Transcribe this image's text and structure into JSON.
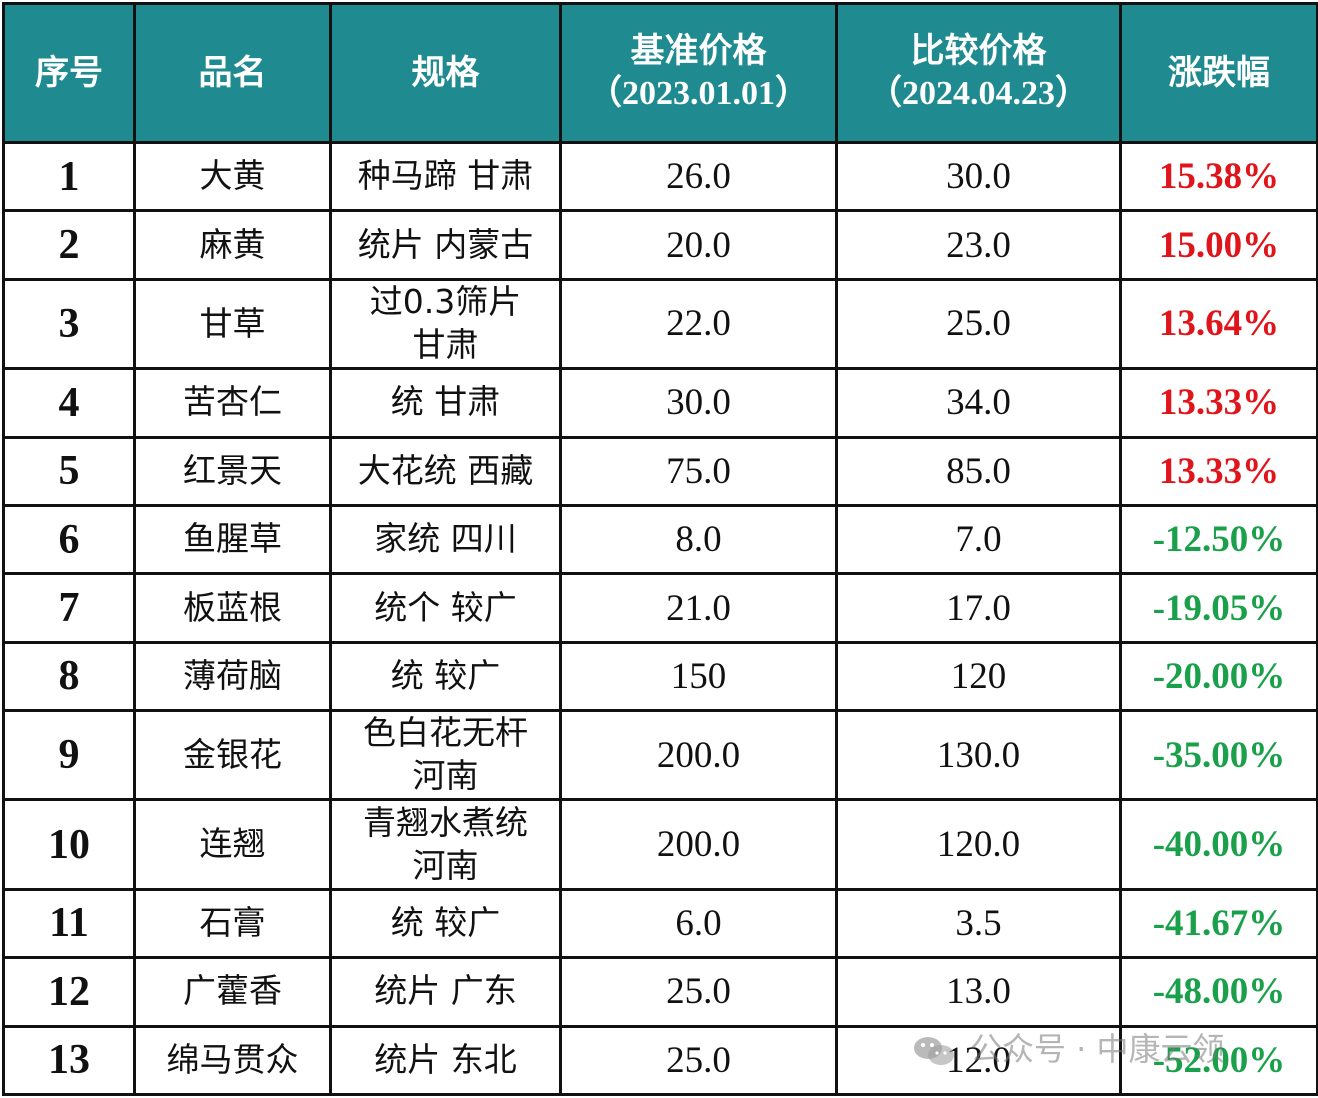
{
  "headers": {
    "no": "序号",
    "name": "品名",
    "spec": "规格",
    "base_title": "基准价格",
    "base_date": "（2023.01.01）",
    "cmp_title": "比较价格",
    "cmp_date": "（2024.04.23）",
    "change": "涨跌幅"
  },
  "rows": [
    {
      "no": "1",
      "name": "大黄",
      "spec": [
        "种马蹄 甘肃"
      ],
      "base": "26.0",
      "cmp": "30.0",
      "change": "15.38%",
      "trend": "up"
    },
    {
      "no": "2",
      "name": "麻黄",
      "spec": [
        "统片 内蒙古"
      ],
      "base": "20.0",
      "cmp": "23.0",
      "change": "15.00%",
      "trend": "up"
    },
    {
      "no": "3",
      "name": "甘草",
      "spec": [
        "过0.3筛片",
        "甘肃"
      ],
      "base": "22.0",
      "cmp": "25.0",
      "change": "13.64%",
      "trend": "up"
    },
    {
      "no": "4",
      "name": "苦杏仁",
      "spec": [
        "统 甘肃"
      ],
      "base": "30.0",
      "cmp": "34.0",
      "change": "13.33%",
      "trend": "up"
    },
    {
      "no": "5",
      "name": "红景天",
      "spec": [
        "大花统 西藏"
      ],
      "base": "75.0",
      "cmp": "85.0",
      "change": "13.33%",
      "trend": "up"
    },
    {
      "no": "6",
      "name": "鱼腥草",
      "spec": [
        "家统 四川"
      ],
      "base": "8.0",
      "cmp": "7.0",
      "change": "-12.50%",
      "trend": "down"
    },
    {
      "no": "7",
      "name": "板蓝根",
      "spec": [
        "统个 较广"
      ],
      "base": "21.0",
      "cmp": "17.0",
      "change": "-19.05%",
      "trend": "down"
    },
    {
      "no": "8",
      "name": "薄荷脑",
      "spec": [
        "统 较广"
      ],
      "base": "150",
      "cmp": "120",
      "change": "-20.00%",
      "trend": "down"
    },
    {
      "no": "9",
      "name": "金银花",
      "spec": [
        "色白花无杆",
        "河南"
      ],
      "base": "200.0",
      "cmp": "130.0",
      "change": "-35.00%",
      "trend": "down"
    },
    {
      "no": "10",
      "name": "连翘",
      "spec": [
        "青翘水煮统",
        "河南"
      ],
      "base": "200.0",
      "cmp": "120.0",
      "change": "-40.00%",
      "trend": "down"
    },
    {
      "no": "11",
      "name": "石膏",
      "spec": [
        "统 较广"
      ],
      "base": "6.0",
      "cmp": "3.5",
      "change": "-41.67%",
      "trend": "down"
    },
    {
      "no": "12",
      "name": "广藿香",
      "spec": [
        "统片 广东"
      ],
      "base": "25.0",
      "cmp": "13.0",
      "change": "-48.00%",
      "trend": "down"
    },
    {
      "no": "13",
      "name": "绵马贯众",
      "spec": [
        "统片 东北"
      ],
      "base": "25.0",
      "cmp": "12.0",
      "change": "-52.00%",
      "trend": "down"
    }
  ],
  "colors": {
    "header_bg": "#1f8a8f",
    "up": "#e0151b",
    "down": "#1aa04a"
  },
  "watermark": {
    "text": "公众号 · 中康云领",
    "icon": "wechat-icon"
  }
}
